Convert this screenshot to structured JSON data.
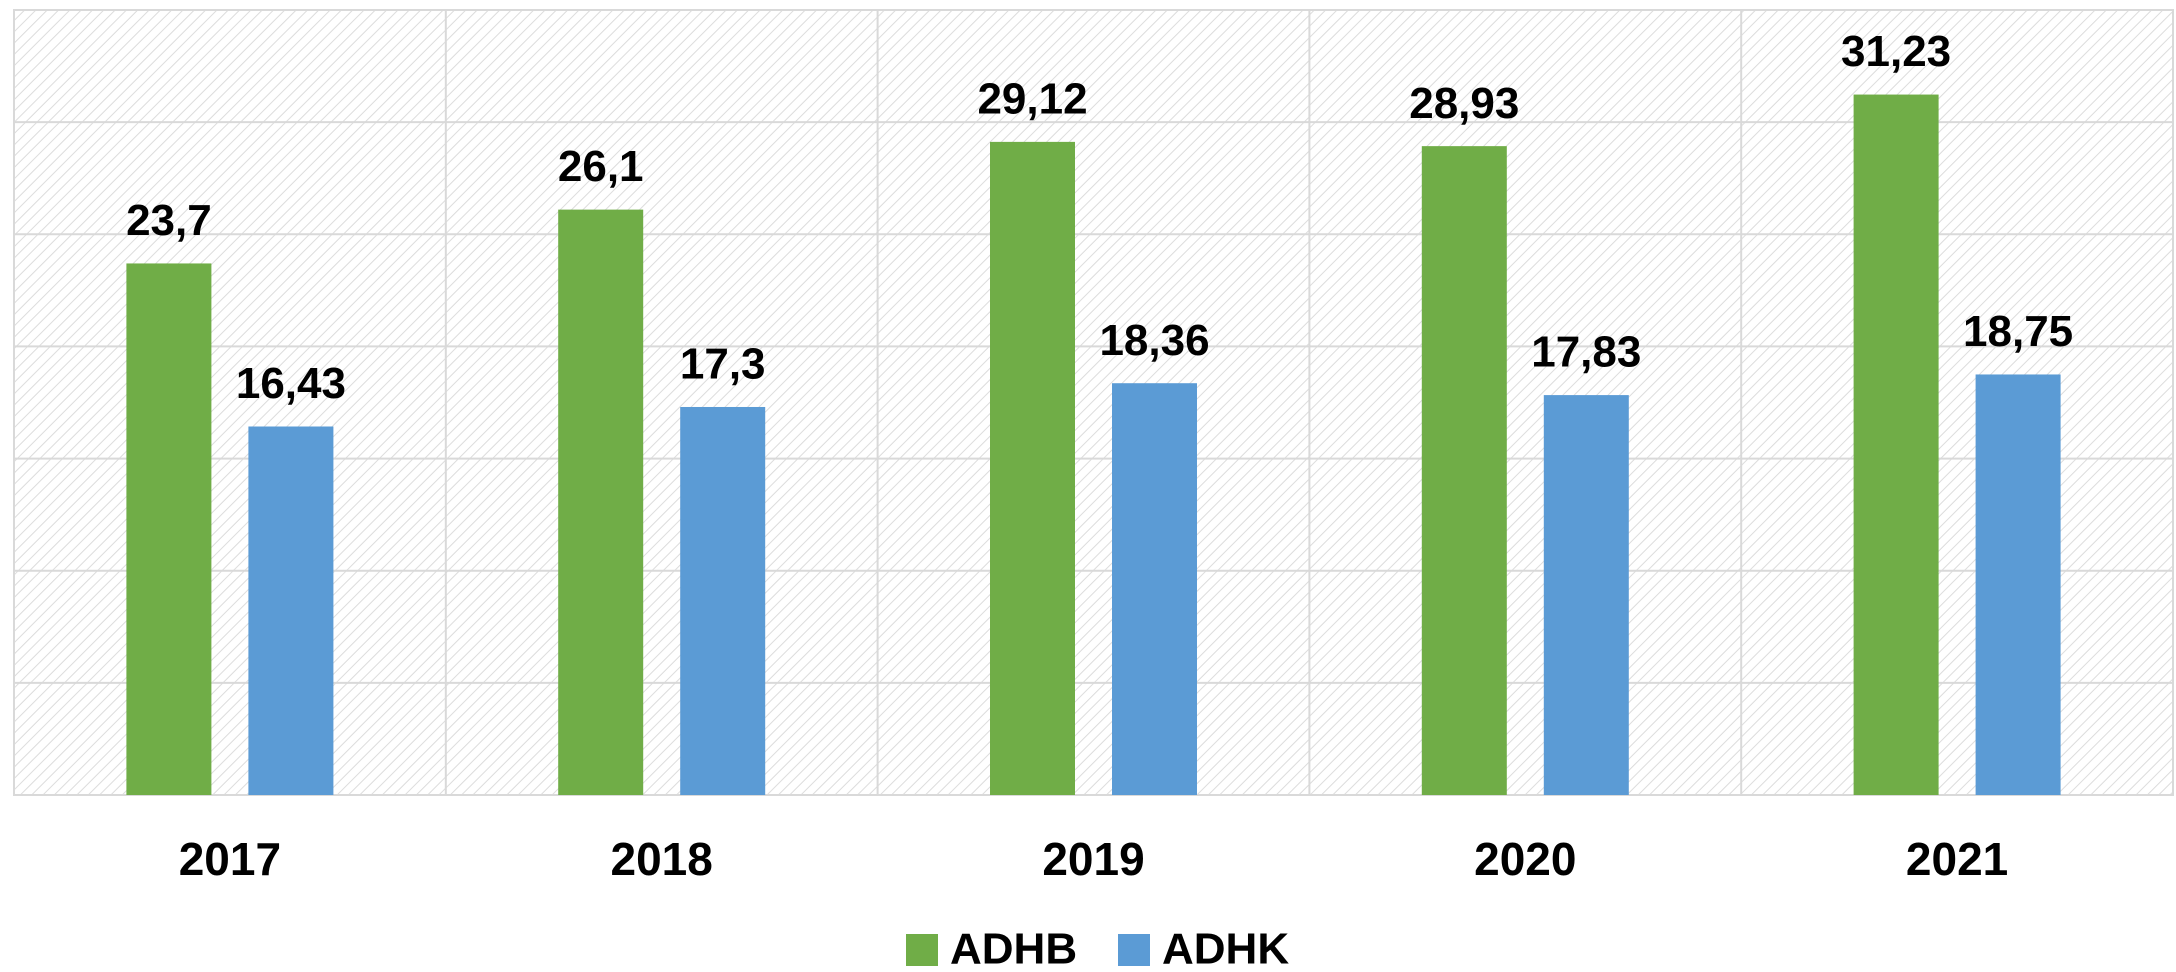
{
  "chart_data": {
    "type": "bar",
    "categories": [
      "2017",
      "2018",
      "2019",
      "2020",
      "2021"
    ],
    "series": [
      {
        "name": "ADHB",
        "color": "#70ad47",
        "values": [
          23.7,
          26.1,
          29.12,
          28.93,
          31.23
        ],
        "value_labels": [
          "23,7",
          "26,1",
          "29,12",
          "28,93",
          "31,23"
        ]
      },
      {
        "name": "ADHK",
        "color": "#5b9bd5",
        "values": [
          16.43,
          17.3,
          18.36,
          17.83,
          18.75
        ],
        "value_labels": [
          "16,43",
          "17,3",
          "18,36",
          "17,83",
          "18,75"
        ]
      }
    ],
    "ylim": [
      0,
      35
    ],
    "yticks": [
      0,
      5,
      10,
      15,
      20,
      25,
      30,
      35
    ],
    "grid": true,
    "legend": "bottom"
  }
}
